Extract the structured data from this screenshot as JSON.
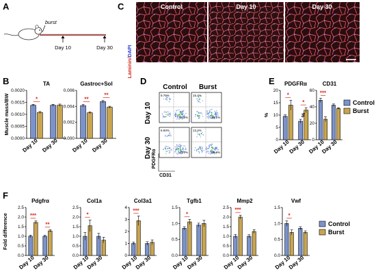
{
  "figure": {
    "colors": {
      "control": "#7b93cc",
      "burst": "#c9a550",
      "star": "#d52b1e",
      "muscle_bg": "#2a0e0e",
      "muscle_mem": "#e2506a"
    },
    "panelA": {
      "label": "A",
      "burst_label": "burst",
      "timepoints": [
        "Day 10",
        "Day 30"
      ]
    },
    "panelC": {
      "label": "C",
      "images": [
        "Control",
        "Day 10",
        "Day 30"
      ],
      "stain_laminin": "Laminin/",
      "stain_dapi": "DAPI"
    },
    "panelD": {
      "label": "D",
      "cols": [
        "Control",
        "Burst"
      ],
      "rows": [
        "Day 10",
        "Day 30"
      ],
      "x_axis": "CD31",
      "y_axis": "PDGFRα",
      "quadrant_pcts": [
        {
          "tl": "9.75%",
          "br": "48.5%"
        },
        {
          "tl": "15.4%",
          "br": "28.1%"
        },
        {
          "tl": "6.93%",
          "br": "41.7%"
        },
        {
          "tl": "13.4%",
          "br": "36.6%"
        }
      ]
    },
    "legend": {
      "control": "Control",
      "burst": "Burst"
    },
    "categories": [
      "Day 10",
      "Day 30"
    ]
  },
  "chart_data": [
    {
      "id": "B-TA",
      "panel": "B",
      "type": "bar",
      "title": "TA",
      "ylabel": "Muscle mass/BW",
      "ylim": [
        0,
        0.002
      ],
      "yticks": [
        "0.0000",
        "0.0005",
        "0.0010",
        "0.0015",
        "0.0020"
      ],
      "categories": [
        "Day 10",
        "Day 30"
      ],
      "series": [
        {
          "name": "Control",
          "values": [
            0.00138,
            0.00138
          ],
          "errors": [
            4e-05,
            4e-05
          ]
        },
        {
          "name": "Burst",
          "values": [
            0.00108,
            0.00138
          ],
          "errors": [
            4e-05,
            5e-05
          ]
        }
      ],
      "sig": [
        "*",
        ""
      ]
    },
    {
      "id": "B-GS",
      "panel": "B",
      "type": "bar",
      "title": "Gastroc+Sol",
      "ylabel": "",
      "ylim": [
        0,
        0.006
      ],
      "yticks": [
        "0.000",
        "0.002",
        "0.004",
        "0.006"
      ],
      "categories": [
        "Day 10",
        "Day 30"
      ],
      "series": [
        {
          "name": "Control",
          "values": [
            0.0041,
            0.0046
          ],
          "errors": [
            0.00015,
            0.00015
          ]
        },
        {
          "name": "Burst",
          "values": [
            0.0032,
            0.0039
          ],
          "errors": [
            0.00012,
            0.00012
          ]
        }
      ],
      "sig": [
        "**",
        "**"
      ]
    },
    {
      "id": "E-PDGFRa",
      "panel": "E",
      "type": "bar",
      "title": "PDGFRα",
      "ylabel": "%",
      "ylim": [
        0,
        20
      ],
      "yticks": [
        "0",
        "5",
        "10",
        "15",
        "20"
      ],
      "categories": [
        "Day 10",
        "Day 30"
      ],
      "series": [
        {
          "name": "Control",
          "values": [
            9.5,
            7.5
          ],
          "errors": [
            0.6,
            0.8
          ]
        },
        {
          "name": "Burst",
          "values": [
            14.0,
            12.0
          ],
          "errors": [
            2.0,
            1.0
          ]
        }
      ],
      "sig": [
        "*",
        "*"
      ]
    },
    {
      "id": "E-CD31",
      "panel": "E",
      "type": "bar",
      "title": "CD31",
      "ylabel": "%",
      "ylim": [
        0,
        60
      ],
      "yticks": [
        "0",
        "20",
        "40",
        "60"
      ],
      "categories": [
        "Day 10",
        "Day 30"
      ],
      "series": [
        {
          "name": "Control",
          "values": [
            48,
            42
          ],
          "errors": [
            2.5,
            1.5
          ]
        },
        {
          "name": "Burst",
          "values": [
            25,
            38
          ],
          "errors": [
            3.0,
            1.0
          ]
        }
      ],
      "sig": [
        "***",
        ""
      ]
    },
    {
      "id": "F-Pdgfra",
      "panel": "F",
      "type": "bar",
      "title": "Pdgfrα",
      "ylabel": "Fold difference",
      "ylim": [
        0,
        2.5
      ],
      "yticks": [
        "0.0",
        "0.5",
        "1.0",
        "1.5",
        "2.0",
        "2.5"
      ],
      "categories": [
        "Day 10",
        "Day 30"
      ],
      "series": [
        {
          "name": "Control",
          "values": [
            1.0,
            1.0
          ],
          "errors": [
            0.06,
            0.05
          ]
        },
        {
          "name": "Burst",
          "values": [
            1.72,
            1.28
          ],
          "errors": [
            0.08,
            0.06
          ]
        }
      ],
      "sig": [
        "***",
        "**"
      ]
    },
    {
      "id": "F-Col1a",
      "panel": "F",
      "type": "bar",
      "title": "Col1a",
      "ylabel": "",
      "ylim": [
        0,
        2.5
      ],
      "yticks": [
        "0.0",
        "0.5",
        "1.0",
        "1.5",
        "2.0",
        "2.5"
      ],
      "categories": [
        "Day 10",
        "Day 30"
      ],
      "series": [
        {
          "name": "Control",
          "values": [
            1.0,
            1.0
          ],
          "errors": [
            0.2,
            0.15
          ]
        },
        {
          "name": "Burst",
          "values": [
            1.55,
            0.8
          ],
          "errors": [
            0.3,
            0.15
          ]
        }
      ],
      "sig": [
        "*",
        ""
      ]
    },
    {
      "id": "F-Col3a1",
      "panel": "F",
      "type": "bar",
      "title": "Col3a1",
      "ylabel": "",
      "ylim": [
        0,
        4
      ],
      "yticks": [
        "0",
        "1",
        "2",
        "3",
        "4"
      ],
      "categories": [
        "Day 10",
        "Day 30"
      ],
      "series": [
        {
          "name": "Control",
          "values": [
            1.0,
            1.0
          ],
          "errors": [
            0.12,
            0.15
          ]
        },
        {
          "name": "Burst",
          "values": [
            2.9,
            1.1
          ],
          "errors": [
            0.4,
            0.2
          ]
        }
      ],
      "sig": [
        "***",
        ""
      ]
    },
    {
      "id": "F-Tgfb1",
      "panel": "F",
      "type": "bar",
      "title": "Tgfb1",
      "ylabel": "",
      "ylim": [
        0,
        1.5
      ],
      "yticks": [
        "0.0",
        "0.5",
        "1.0",
        "1.5"
      ],
      "categories": [
        "Day 10",
        "Day 30"
      ],
      "series": [
        {
          "name": "Control",
          "values": [
            0.85,
            0.95
          ],
          "errors": [
            0.05,
            0.06
          ]
        },
        {
          "name": "Burst",
          "values": [
            1.05,
            1.0
          ],
          "errors": [
            0.08,
            0.1
          ]
        }
      ],
      "sig": [
        "*",
        ""
      ]
    },
    {
      "id": "F-Mmp2",
      "panel": "F",
      "type": "bar",
      "title": "Mmp2",
      "ylabel": "",
      "ylim": [
        0,
        2.5
      ],
      "yticks": [
        "0.0",
        "0.5",
        "1.0",
        "1.5",
        "2.0",
        "2.5"
      ],
      "categories": [
        "Day 10",
        "Day 30"
      ],
      "series": [
        {
          "name": "Control",
          "values": [
            1.0,
            1.0
          ],
          "errors": [
            0.1,
            0.08
          ]
        },
        {
          "name": "Burst",
          "values": [
            2.0,
            1.25
          ],
          "errors": [
            0.1,
            0.1
          ]
        }
      ],
      "sig": [
        "***",
        ""
      ]
    },
    {
      "id": "F-Vwf",
      "panel": "F",
      "type": "bar",
      "title": "Vwf",
      "ylabel": "",
      "ylim": [
        0,
        1.5
      ],
      "yticks": [
        "0.0",
        "0.5",
        "1.0",
        "1.5"
      ],
      "categories": [
        "Day 10",
        "Day 30"
      ],
      "series": [
        {
          "name": "Control",
          "values": [
            1.0,
            0.85
          ],
          "errors": [
            0.08,
            0.05
          ]
        },
        {
          "name": "Burst",
          "values": [
            0.72,
            0.72
          ],
          "errors": [
            0.08,
            0.05
          ]
        }
      ],
      "sig": [
        "*",
        ""
      ]
    }
  ]
}
